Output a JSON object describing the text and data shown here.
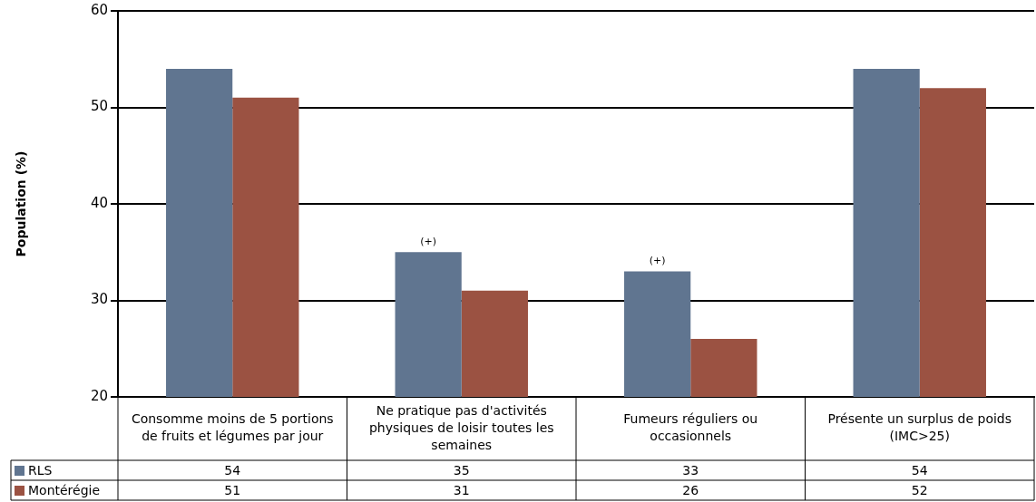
{
  "chart_data": {
    "type": "bar",
    "ylabel": "Population (%)",
    "categories": [
      "Consomme moins de 5 portions de fruits et légumes par jour",
      "Ne pratique pas d'activités physiques de loisir toutes les semaines",
      "Fumeurs réguliers ou occasionnels",
      "Présente un surplus de poids (IMC>25)"
    ],
    "series": [
      {
        "name": "RLS",
        "color": "#607590",
        "values": [
          54,
          35,
          33,
          54
        ]
      },
      {
        "name": "Montérégie",
        "color": "#9b5242",
        "values": [
          51,
          31,
          26,
          52
        ]
      }
    ],
    "ylim": [
      20,
      60
    ],
    "yticks": [
      20,
      30,
      40,
      50,
      60
    ],
    "grid": "y",
    "legend": "bottom",
    "data_labels": true,
    "annotations": [
      {
        "text": "(+)",
        "x": "Ne pratique pas d'activités physiques de loisir toutes les semaines",
        "y": 35
      },
      {
        "text": "(+)",
        "x": "Fumeurs réguliers ou occasionnels",
        "y": 33
      }
    ]
  }
}
